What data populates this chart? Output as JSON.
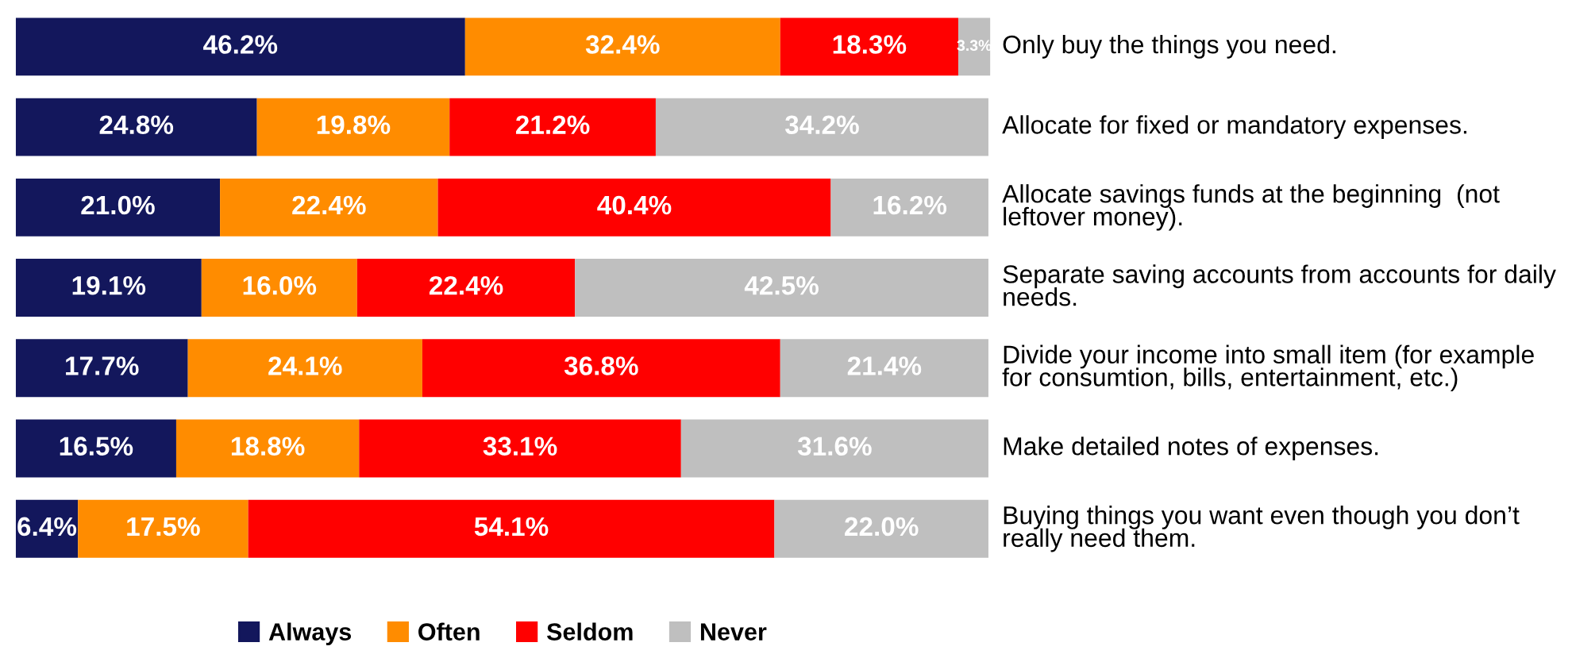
{
  "chart_data": {
    "type": "bar",
    "orientation": "horizontal",
    "stacked": true,
    "legend": "bottom",
    "categories": [
      "Only buy the things you need.",
      "Allocate for fixed or mandatory expenses.",
      "Allocate savings funds at the beginning  (not leftover money).",
      "Separate saving accounts from accounts for daily needs.",
      "Divide your income into small item (for example for consumtion, bills, entertainment, etc.)",
      "Make detailed notes of expenses.",
      "Buying things you want even though you don’t really need them."
    ],
    "series": [
      {
        "name": "Always",
        "color": "#13175c",
        "values": [
          46.2,
          24.8,
          21.0,
          19.1,
          17.7,
          16.5,
          6.4
        ],
        "value_labels": [
          "46.2%",
          "24.8%",
          "21.0%",
          "19.1%",
          "17.7%",
          "16.5%",
          "6.4%"
        ]
      },
      {
        "name": "Often",
        "color": "#ff8c00",
        "values": [
          32.4,
          19.8,
          22.4,
          16.0,
          24.1,
          18.8,
          17.5
        ],
        "value_labels": [
          "32.4%",
          "19.8%",
          "22.4%",
          "16.0%",
          "24.1%",
          "18.8%",
          "17.5%"
        ]
      },
      {
        "name": "Seldom",
        "color": "#ff0000",
        "values": [
          18.3,
          21.2,
          40.4,
          22.4,
          36.8,
          33.1,
          54.1
        ],
        "value_labels": [
          "18.3%",
          "21.2%",
          "40.4%",
          "22.4%",
          "36.8%",
          "33.1%",
          "54.1%"
        ]
      },
      {
        "name": "Never",
        "color": "#bfbfbf",
        "values": [
          3.3,
          34.2,
          16.2,
          42.5,
          21.4,
          31.6,
          22.0
        ],
        "value_labels": [
          "3.3%",
          "34.2%",
          "16.2%",
          "42.5%",
          "21.4%",
          "31.6%",
          "22.0%"
        ]
      }
    ]
  }
}
